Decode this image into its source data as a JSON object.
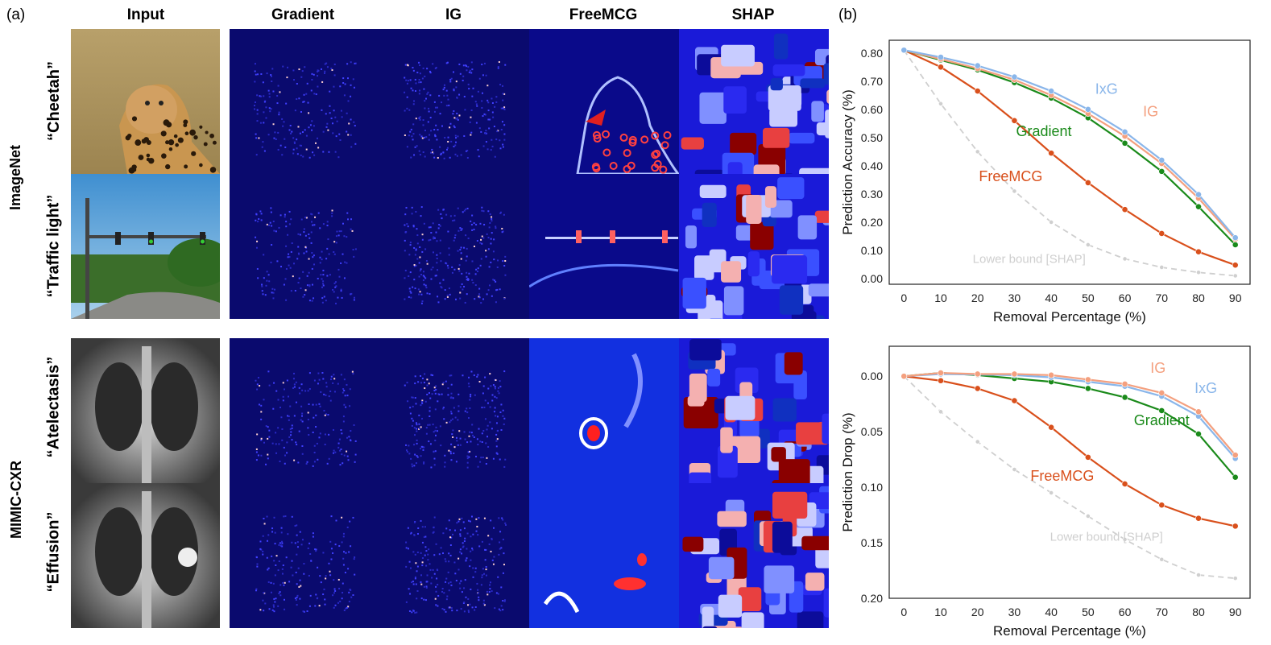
{
  "panel_a_label": "(a)",
  "panel_b_label": "(b)",
  "column_titles": [
    "Input",
    "Gradient",
    "IG",
    "FreeMCG",
    "SHAP"
  ],
  "datasets": [
    {
      "name": "ImageNet",
      "rows": [
        "“Cheetah”",
        "“Traffic light”"
      ]
    },
    {
      "name": "MIMIC-CXR",
      "rows": [
        "“Atelectasis”",
        "“Effusion”"
      ]
    }
  ],
  "images": [
    {
      "row": "“Cheetah”",
      "input": "cheetah photo"
    },
    {
      "row": "“Traffic light”",
      "input": "traffic light photo"
    },
    {
      "row": "“Atelectasis”",
      "input": "chest x-ray"
    },
    {
      "row": "“Effusion”",
      "input": "chest x-ray"
    }
  ],
  "colors": {
    "Gradient": "#1a8a1a",
    "IG": "#f4a07f",
    "IxG": "#8ab6ea",
    "FreeMCG": "#d9501c",
    "Lower bound [SHAP]": "#cfcfcf",
    "saliency_bg": "#0a0a6e"
  },
  "chart_data": [
    {
      "type": "line",
      "title": "",
      "xlabel": "Removal Percentage (%)",
      "ylabel": "Prediction Accuracy (%)",
      "x": [
        0,
        10,
        20,
        30,
        40,
        50,
        60,
        70,
        80,
        90
      ],
      "xticks": [
        "0",
        "10",
        "20",
        "30",
        "40",
        "50",
        "60",
        "70",
        "80",
        "90"
      ],
      "yticks": [
        "0.00",
        "0.10",
        "0.20",
        "0.30",
        "0.40",
        "0.50",
        "0.60",
        "0.70",
        "0.80"
      ],
      "ylim": [
        -0.02,
        0.845
      ],
      "y_inverted": false,
      "series": [
        {
          "name": "Lower bound [SHAP]",
          "label": "Lower bound [SHAP]",
          "dashed": true,
          "values": [
            0.81,
            0.62,
            0.45,
            0.31,
            0.2,
            0.12,
            0.07,
            0.04,
            0.022,
            0.01
          ]
        },
        {
          "name": "FreeMCG",
          "label": "FreeMCG",
          "dashed": false,
          "values": [
            0.81,
            0.75,
            0.665,
            0.56,
            0.445,
            0.34,
            0.245,
            0.16,
            0.095,
            0.048
          ]
        },
        {
          "name": "Gradient",
          "label": "Gradient",
          "dashed": false,
          "values": [
            0.81,
            0.775,
            0.74,
            0.695,
            0.64,
            0.57,
            0.48,
            0.38,
            0.255,
            0.12
          ]
        },
        {
          "name": "IG",
          "label": "IG",
          "dashed": false,
          "values": [
            0.81,
            0.778,
            0.745,
            0.705,
            0.65,
            0.585,
            0.505,
            0.408,
            0.285,
            0.14
          ]
        },
        {
          "name": "IxG",
          "label": "IxG",
          "dashed": false,
          "values": [
            0.81,
            0.785,
            0.755,
            0.715,
            0.665,
            0.6,
            0.52,
            0.42,
            0.298,
            0.145
          ]
        }
      ],
      "annotations": [
        {
          "series": "IxG",
          "text": "IxG",
          "at_x": 55,
          "at_y": 0.655
        },
        {
          "series": "IG",
          "text": "IG",
          "at_x": 67,
          "at_y": 0.575
        },
        {
          "series": "Gradient",
          "text": "Gradient",
          "at_x": 38,
          "at_y": 0.505
        },
        {
          "series": "FreeMCG",
          "text": "FreeMCG",
          "at_x": 29,
          "at_y": 0.345
        },
        {
          "series": "Lower bound [SHAP]",
          "text": "Lower bound [SHAP]",
          "at_x": 34,
          "at_y": 0.055
        }
      ]
    },
    {
      "type": "line",
      "title": "",
      "xlabel": "Removal Percentage (%)",
      "ylabel": "Prediction Drop (%)",
      "x": [
        0,
        10,
        20,
        30,
        40,
        50,
        60,
        70,
        80,
        90
      ],
      "xticks": [
        "0",
        "10",
        "20",
        "30",
        "40",
        "50",
        "60",
        "70",
        "80",
        "90"
      ],
      "yticks": [
        "0.00",
        "0.05",
        "0.10",
        "0.15",
        "0.20"
      ],
      "ylim": [
        -0.027,
        0.2
      ],
      "y_inverted": true,
      "series": [
        {
          "name": "Lower bound [SHAP]",
          "label": "Lower bound [SHAP]",
          "dashed": true,
          "values": [
            0.0,
            0.032,
            0.059,
            0.084,
            0.105,
            0.126,
            0.147,
            0.165,
            0.179,
            0.182
          ]
        },
        {
          "name": "FreeMCG",
          "label": "FreeMCG",
          "dashed": false,
          "values": [
            0.0,
            0.004,
            0.011,
            0.022,
            0.046,
            0.073,
            0.097,
            0.116,
            0.128,
            0.135
          ]
        },
        {
          "name": "Gradient",
          "label": "Gradient",
          "dashed": false,
          "values": [
            0.0,
            -0.003,
            -0.001,
            0.002,
            0.005,
            0.011,
            0.019,
            0.031,
            0.052,
            0.091
          ]
        },
        {
          "name": "IxG",
          "label": "IxG",
          "dashed": false,
          "values": [
            0.0,
            -0.002,
            -0.0015,
            -0.001,
            0.001,
            0.005,
            0.009,
            0.018,
            0.036,
            0.074
          ]
        },
        {
          "name": "IG",
          "label": "IG",
          "dashed": false,
          "values": [
            0.0,
            -0.003,
            -0.002,
            -0.002,
            -0.001,
            0.003,
            0.007,
            0.015,
            0.032,
            0.071
          ]
        }
      ],
      "annotations": [
        {
          "series": "IG",
          "text": "IG",
          "at_x": 69,
          "at_y": -0.003
        },
        {
          "series": "IxG",
          "text": "IxG",
          "at_x": 82,
          "at_y": 0.015
        },
        {
          "series": "Gradient",
          "text": "Gradient",
          "at_x": 70,
          "at_y": 0.044
        },
        {
          "series": "FreeMCG",
          "text": "FreeMCG",
          "at_x": 43,
          "at_y": 0.094
        },
        {
          "series": "Lower bound [SHAP]",
          "text": "Lower bound [SHAP]",
          "at_x": 55,
          "at_y": 0.148
        }
      ]
    }
  ]
}
